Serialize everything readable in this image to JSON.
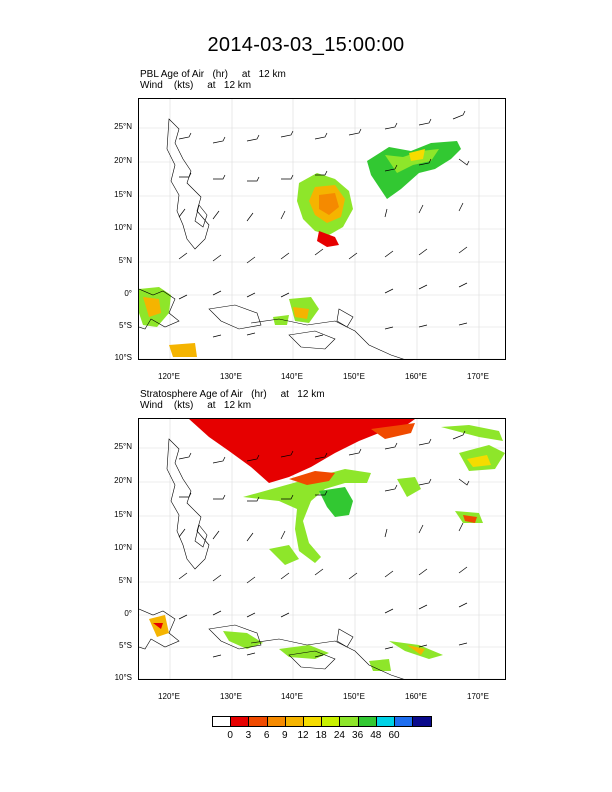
{
  "title": "2014-03-03_15:00:00",
  "panels": [
    {
      "label_line1": "PBL Age of Air   (hr)     at   12 km",
      "label_line2": "Wind    (kts)     at   12 km"
    },
    {
      "label_line1": "Stratosphere Age of Air   (hr)     at   12 km",
      "label_line2": "Wind    (kts)     at   12 km"
    }
  ],
  "lat_labels": [
    "25°N",
    "20°N",
    "15°N",
    "10°N",
    "5°N",
    "0°",
    "5°S",
    "10°S"
  ],
  "lon_labels": [
    "120°E",
    "130°E",
    "140°E",
    "150°E",
    "160°E",
    "170°E"
  ],
  "colorbar": {
    "colors": [
      "#ffffff",
      "#e60000",
      "#f04a00",
      "#f58a00",
      "#f5b400",
      "#f5dc00",
      "#c8f000",
      "#8ee62a",
      "#32c832",
      "#00d2e6",
      "#1e6ef0",
      "#0a0a8c"
    ],
    "labels": [
      "0",
      "3",
      "6",
      "9",
      "12",
      "18",
      "24",
      "36",
      "48",
      "60"
    ]
  }
}
